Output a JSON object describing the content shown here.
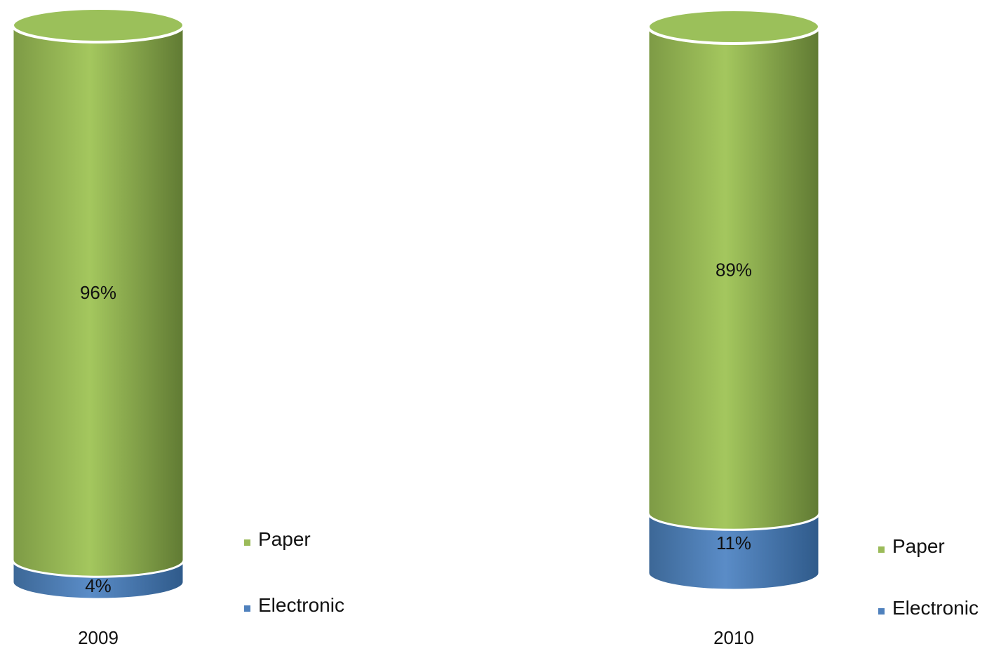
{
  "chart_data": [
    {
      "type": "bar",
      "subtype": "stacked-cylinder-100",
      "category": "2009",
      "series": [
        {
          "name": "Electronic",
          "value": 4,
          "label": "4%",
          "color": "#4f81bd"
        },
        {
          "name": "Paper",
          "value": 96,
          "label": "96%",
          "color": "#9bbb59"
        }
      ],
      "ylim": [
        0,
        100
      ],
      "legend": {
        "placement": "right",
        "entries": [
          "Paper",
          "Electronic"
        ]
      }
    },
    {
      "type": "bar",
      "subtype": "stacked-cylinder-100",
      "category": "2010",
      "series": [
        {
          "name": "Electronic",
          "value": 11,
          "label": "11%",
          "color": "#4f81bd"
        },
        {
          "name": "Paper",
          "value": 89,
          "label": "89%",
          "color": "#9bbb59"
        }
      ],
      "ylim": [
        0,
        100
      ],
      "legend": {
        "placement": "right",
        "entries": [
          "Paper",
          "Electronic"
        ]
      }
    }
  ]
}
